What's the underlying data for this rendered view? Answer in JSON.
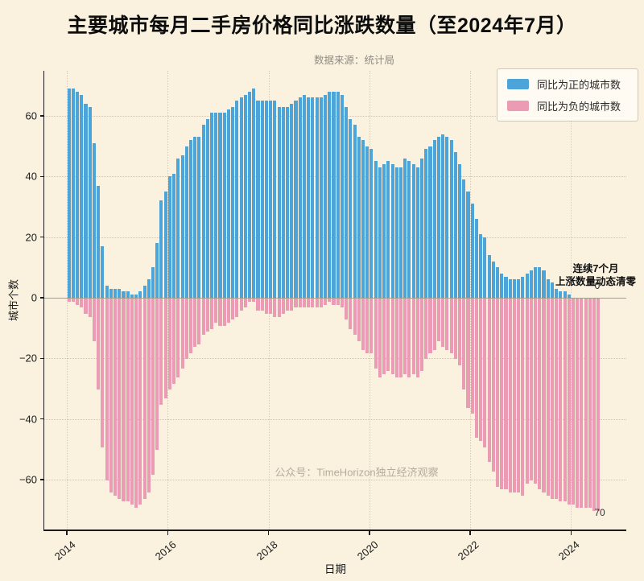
{
  "title": "主要城市每月二手房价格同比涨跌数量（至2024年7月）",
  "subtitle": "数据来源：统计局",
  "watermark": "公众号：TimeHorizon独立经济观察",
  "legend": {
    "positive_label": "同比为正的城市数",
    "negative_label": "同比为负的城市数"
  },
  "annotation": {
    "line1": "连续7个月",
    "line2": "上涨数量动态清零",
    "zero_label": "0",
    "final_negative_label": "70"
  },
  "axes": {
    "ylabel": "城市个数",
    "xlabel": "日期",
    "yticks": [
      {
        "label": "60",
        "value": 60
      },
      {
        "label": "40",
        "value": 40
      },
      {
        "label": "20",
        "value": 20
      },
      {
        "label": "0",
        "value": 0
      },
      {
        "label": "−20",
        "value": -20
      },
      {
        "label": "−40",
        "value": -40
      },
      {
        "label": "−60",
        "value": -60
      }
    ],
    "xticks": [
      {
        "label": "2014",
        "month_index": 0
      },
      {
        "label": "2016",
        "month_index": 24
      },
      {
        "label": "2018",
        "month_index": 48
      },
      {
        "label": "2020",
        "month_index": 72
      },
      {
        "label": "2022",
        "month_index": 96
      },
      {
        "label": "2024",
        "month_index": 120
      }
    ]
  },
  "colors": {
    "positive": "#4da4d8",
    "negative": "#eb9bb4",
    "background": "#faf2df"
  },
  "chart_data": {
    "type": "bar",
    "subtype": "diverging-monthly-counts",
    "x_start": "2014-01",
    "x_end": "2024-07",
    "frequency": "monthly",
    "n_points": 127,
    "ylim": [
      -75,
      75
    ],
    "grid": true,
    "legend_position": "top-right",
    "series": [
      {
        "name": "同比为正的城市数",
        "color": "#4da4d8",
        "values": [
          69,
          69,
          68,
          67,
          64,
          63,
          51,
          37,
          17,
          4,
          3,
          3,
          3,
          2,
          2,
          1,
          1,
          2,
          4,
          6,
          10,
          18,
          32,
          35,
          40,
          41,
          46,
          47,
          50,
          52,
          53,
          53,
          57,
          59,
          61,
          61,
          61,
          61,
          62,
          63,
          65,
          66,
          67,
          68,
          69,
          65,
          65,
          65,
          65,
          65,
          63,
          63,
          63,
          64,
          65,
          66,
          67,
          66,
          66,
          66,
          66,
          67,
          68,
          68,
          68,
          67,
          63,
          59,
          57,
          53,
          52,
          50,
          49,
          45,
          43,
          44,
          45,
          44,
          43,
          43,
          46,
          45,
          44,
          43,
          46,
          49,
          50,
          52,
          53,
          54,
          53,
          52,
          48,
          44,
          39,
          35,
          31,
          26,
          21,
          20,
          14,
          12,
          10,
          8,
          7,
          6,
          6,
          6,
          7,
          8,
          9,
          10,
          10,
          9,
          6,
          5,
          3,
          2,
          2,
          1,
          0,
          0,
          0,
          0,
          0,
          0,
          0
        ]
      },
      {
        "name": "同比为负的城市数",
        "color": "#eb9bb4",
        "values": [
          -1,
          -1,
          -2,
          -3,
          -5,
          -6,
          -14,
          -30,
          -49,
          -60,
          -64,
          -65,
          -66,
          -67,
          -67,
          -68,
          -69,
          -68,
          -66,
          -64,
          -58,
          -50,
          -35,
          -33,
          -30,
          -28,
          -26,
          -23,
          -20,
          -18,
          -16,
          -15,
          -12,
          -11,
          -10,
          -8,
          -9,
          -9,
          -8,
          -7,
          -6,
          -4,
          -3,
          -1,
          -1,
          -4,
          -4,
          -5,
          -5,
          -6,
          -6,
          -5,
          -4,
          -4,
          -3,
          -3,
          -3,
          -3,
          -3,
          -3,
          -3,
          -2,
          -1,
          -2,
          -2,
          -3,
          -7,
          -10,
          -12,
          -14,
          -17,
          -18,
          -18,
          -23,
          -26,
          -25,
          -24,
          -25,
          -26,
          -26,
          -25,
          -26,
          -25,
          -26,
          -24,
          -20,
          -18,
          -17,
          -14,
          -16,
          -17,
          -18,
          -20,
          -22,
          -30,
          -36,
          -38,
          -46,
          -47,
          -49,
          -54,
          -57,
          -62,
          -63,
          -63,
          -64,
          -64,
          -64,
          -65,
          -61,
          -60,
          -61,
          -63,
          -64,
          -65,
          -66,
          -66,
          -67,
          -67,
          -68,
          -68,
          -69,
          -69,
          -69,
          -69,
          -70,
          -70
        ]
      }
    ]
  }
}
